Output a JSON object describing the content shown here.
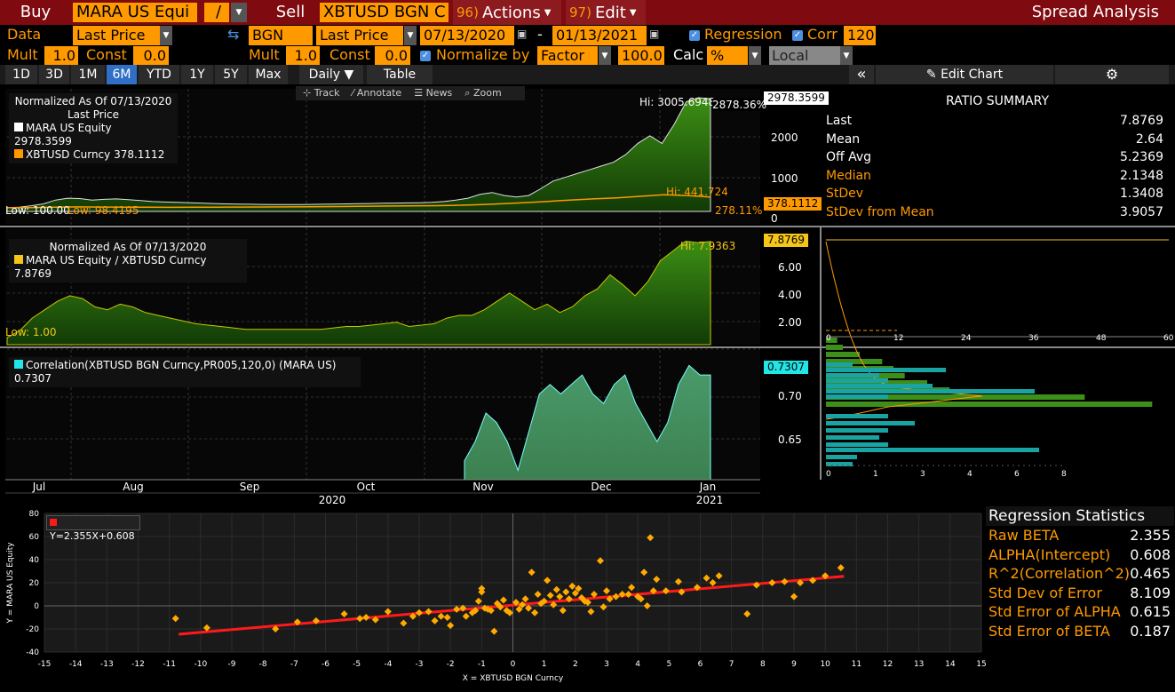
{
  "toolbar": {
    "buy_label": "Buy",
    "buy_ticker": "MARA US Equi",
    "slash": "/",
    "sell_label": "Sell",
    "sell_ticker": "XBTUSD BGN C",
    "actions_num": "96)",
    "actions_label": "Actions",
    "edit_num": "97)",
    "edit_label": "Edit",
    "title": "Spread Analysis"
  },
  "row2": {
    "data_label": "Data",
    "data_value": "Last Price",
    "source": "BGN",
    "source_field": "Last Price",
    "start_date": "07/13/2020",
    "dash": "-",
    "end_date": "01/13/2021",
    "regression_label": "Regression",
    "regression_checked": true,
    "corr_label": "Corr",
    "corr_value": "120"
  },
  "row3": {
    "mult_label": "Mult",
    "mult_value": "1.0",
    "const_label": "Const",
    "const_value": "0.0",
    "mult2_label": "Mult",
    "mult2_value": "1.0",
    "const2_label": "Const",
    "const2_value": "0.0",
    "normalize_label": "Normalize by",
    "normalize_value": "Factor",
    "factor_value": "100.0",
    "calc_label": "Calc",
    "calc_value": "%",
    "ccy_value": "Local CCY"
  },
  "ranges": [
    {
      "label": "1D",
      "selected": false
    },
    {
      "label": "3D",
      "selected": false
    },
    {
      "label": "1M",
      "selected": false
    },
    {
      "label": "6M",
      "selected": true
    },
    {
      "label": "YTD",
      "selected": false
    },
    {
      "label": "1Y",
      "selected": false
    },
    {
      "label": "5Y",
      "selected": false
    },
    {
      "label": "Max",
      "selected": false
    }
  ],
  "freq_label": "Daily ▼",
  "table_label": "Table",
  "collapse_label": "«",
  "edit_chart_label": "Edit Chart",
  "chart_tools": {
    "track": "Track",
    "annotate": "Annotate",
    "news": "News",
    "zoom": "Zoom"
  },
  "colors": {
    "orange": "#ff9900",
    "green": "#2e7d10",
    "teal": "#19a3a3",
    "red": "#ff1a1a",
    "yellow": "#f5c518",
    "bg": "#000000"
  },
  "panel1": {
    "legend_title": "Normalized As Of 07/13/2020",
    "legend_sub": "Last Price",
    "series1": "MARA US Equity 2978.3599",
    "series2": "XBTUSD Curncy   378.1112",
    "hi1": "Hi: 3005.6948",
    "hi1_pct": "2878.36%",
    "hi2": "Hi: 441.724",
    "low1": "Low: 100.00",
    "low2": "Low: 98.4195",
    "pct2": "278.11%",
    "tag1": "2978.3599",
    "tag2": "378.1112",
    "yticks": [
      "2000",
      "1000",
      "0"
    ]
  },
  "panel2": {
    "legend_title": "Normalized As Of 07/13/2020",
    "series": "MARA US Equity / XBTUSD Curncy 7.8769",
    "hi": "Hi: 7.9363",
    "low": "Low: 1.00",
    "tag": "7.8769",
    "yticks": [
      "6.00",
      "4.00",
      "2.00"
    ],
    "hist_xticks": [
      "0",
      "12",
      "24",
      "36",
      "48",
      "60"
    ]
  },
  "panel3": {
    "series": "Correlation(XBTUSD BGN Curncy,PR005,120,0) (MARA US) 0.7307",
    "tag": "0.7307",
    "yticks": [
      "0.70",
      "0.65"
    ],
    "hist_xticks": [
      "0",
      "1",
      "3",
      "4",
      "6",
      "8"
    ]
  },
  "xaxis": {
    "months": [
      "Jul",
      "Aug",
      "Sep",
      "Oct",
      "Nov",
      "Dec",
      "Jan"
    ],
    "years": [
      "2020",
      "2021"
    ]
  },
  "ratio_summary": {
    "title": "RATIO SUMMARY",
    "rows": [
      {
        "label": "Last",
        "value": "7.8769",
        "highlight": false
      },
      {
        "label": "Mean",
        "value": "2.64",
        "highlight": false
      },
      {
        "label": "Off Avg",
        "value": "5.2369",
        "highlight": false
      },
      {
        "label": "Median",
        "value": "2.1348",
        "highlight": true
      },
      {
        "label": "StDev",
        "value": "1.3408",
        "highlight": true
      },
      {
        "label": "StDev from Mean",
        "value": "3.9057",
        "highlight": true
      }
    ]
  },
  "regression": {
    "title": "Regression Statistics",
    "rows": [
      {
        "label": "Raw BETA",
        "value": "2.355"
      },
      {
        "label": "ALPHA(Intercept)",
        "value": "0.608"
      },
      {
        "label": "R^2(Correlation^2)",
        "value": "0.465"
      },
      {
        "label": "Std Dev of Error",
        "value": "8.109"
      },
      {
        "label": "Std Error of ALPHA",
        "value": "0.615"
      },
      {
        "label": "Std Error of BETA",
        "value": "0.187"
      }
    ],
    "equation": "Y=2.355X+0.608",
    "ylabel": "Y = MARA US Equity",
    "xlabel": "X = XBTUSD BGN Curncy"
  },
  "chart_data": {
    "type": "scatter",
    "xlabel": "X = XBTUSD BGN Curncy",
    "ylabel": "Y = MARA US Equity",
    "xlim": [
      -15,
      15
    ],
    "ylim": [
      -40,
      80
    ],
    "xticks": [
      -15,
      -14,
      -13,
      -12,
      -11,
      -10,
      -9,
      -8,
      -7,
      -6,
      -5,
      -4,
      -3,
      -2,
      -1,
      0,
      1,
      2,
      3,
      4,
      5,
      6,
      7,
      8,
      9,
      10,
      11,
      12,
      13,
      14,
      15
    ],
    "yticks": [
      -40,
      -20,
      0,
      20,
      40,
      60,
      80
    ],
    "regression_line": {
      "slope": 2.355,
      "intercept": 0.608,
      "x_range": [
        -10.7,
        10.6
      ]
    },
    "points": [
      [
        -10.8,
        -11
      ],
      [
        -9.8,
        -19
      ],
      [
        -7.6,
        -20
      ],
      [
        -6.9,
        -14
      ],
      [
        -6.3,
        -13
      ],
      [
        -5.4,
        -7
      ],
      [
        -4.9,
        -11
      ],
      [
        -4.7,
        -10
      ],
      [
        -4.4,
        -12
      ],
      [
        -4.0,
        -5
      ],
      [
        -3.5,
        -15
      ],
      [
        -3.2,
        -9
      ],
      [
        -3.0,
        -6
      ],
      [
        -2.7,
        -5
      ],
      [
        -2.5,
        -13
      ],
      [
        -2.3,
        -9
      ],
      [
        -2.1,
        -10
      ],
      [
        -2.0,
        -17
      ],
      [
        -1.8,
        -3
      ],
      [
        -1.6,
        -2
      ],
      [
        -1.5,
        -9
      ],
      [
        -1.3,
        -6
      ],
      [
        -1.2,
        -4
      ],
      [
        -1.1,
        4
      ],
      [
        -1.0,
        12
      ],
      [
        -1.0,
        15
      ],
      [
        -0.9,
        -2
      ],
      [
        -0.8,
        -3
      ],
      [
        -0.7,
        -4
      ],
      [
        -0.6,
        -22
      ],
      [
        -0.5,
        2
      ],
      [
        -0.4,
        -1
      ],
      [
        -0.3,
        5
      ],
      [
        -0.2,
        -4
      ],
      [
        -0.1,
        -6
      ],
      [
        0.1,
        3
      ],
      [
        0.2,
        -3
      ],
      [
        0.3,
        1
      ],
      [
        0.4,
        6
      ],
      [
        0.5,
        -2
      ],
      [
        0.6,
        29
      ],
      [
        0.7,
        -6
      ],
      [
        0.8,
        10
      ],
      [
        0.9,
        2
      ],
      [
        1.0,
        4
      ],
      [
        1.1,
        22
      ],
      [
        1.2,
        9
      ],
      [
        1.3,
        1
      ],
      [
        1.4,
        14
      ],
      [
        1.5,
        8
      ],
      [
        1.6,
        -4
      ],
      [
        1.7,
        12
      ],
      [
        1.8,
        6
      ],
      [
        1.9,
        17
      ],
      [
        2.0,
        11
      ],
      [
        2.1,
        15
      ],
      [
        2.2,
        7
      ],
      [
        2.3,
        4
      ],
      [
        2.4,
        3
      ],
      [
        2.5,
        -5
      ],
      [
        2.6,
        10
      ],
      [
        2.8,
        39
      ],
      [
        2.9,
        -1
      ],
      [
        3.0,
        13
      ],
      [
        3.1,
        6
      ],
      [
        3.3,
        8
      ],
      [
        3.5,
        10
      ],
      [
        3.7,
        10
      ],
      [
        3.8,
        16
      ],
      [
        4.0,
        8
      ],
      [
        4.1,
        6
      ],
      [
        4.2,
        29
      ],
      [
        4.3,
        0
      ],
      [
        4.4,
        59
      ],
      [
        4.5,
        13
      ],
      [
        4.6,
        23
      ],
      [
        4.9,
        13
      ],
      [
        5.3,
        21
      ],
      [
        5.4,
        12
      ],
      [
        5.9,
        16
      ],
      [
        6.2,
        24
      ],
      [
        6.4,
        20
      ],
      [
        6.6,
        26
      ],
      [
        7.5,
        -7
      ],
      [
        7.8,
        18
      ],
      [
        8.3,
        20
      ],
      [
        8.7,
        21
      ],
      [
        9.0,
        8
      ],
      [
        9.2,
        20
      ],
      [
        9.6,
        22
      ],
      [
        10.0,
        26
      ],
      [
        10.5,
        33
      ]
    ],
    "series_panels": {
      "mara_normalized": {
        "start": 100.0,
        "last": 2978.3599,
        "hi": 3005.6948
      },
      "xbt_normalized": {
        "start": 98.4195,
        "last": 378.1112,
        "hi": 441.724
      },
      "ratio": {
        "low": 1.0,
        "hi": 7.9363,
        "last": 7.8769
      },
      "correlation": {
        "last": 0.7307
      }
    }
  }
}
